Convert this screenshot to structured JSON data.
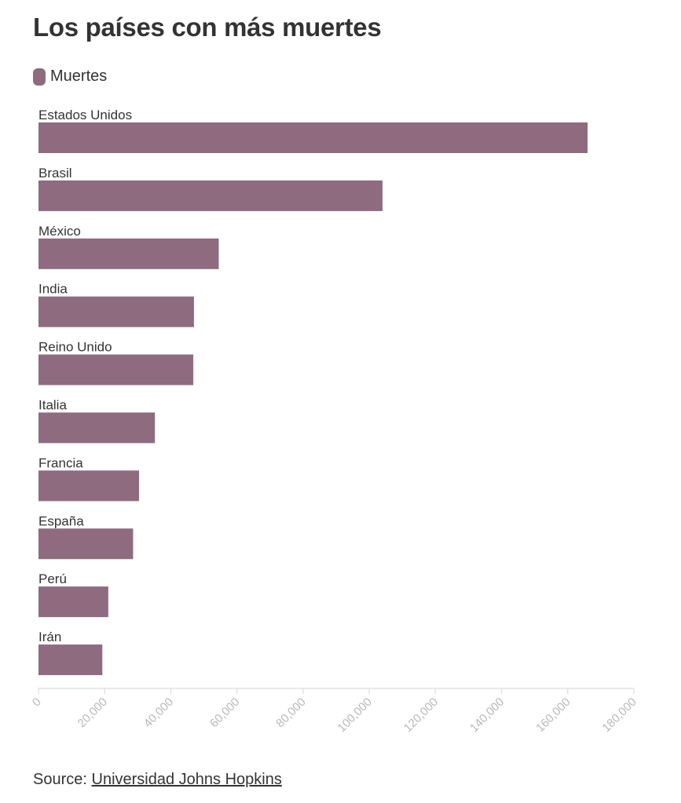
{
  "title": "Los países con más muertes",
  "legend": {
    "label": "Muertes",
    "color": "#8e6b7f"
  },
  "source": {
    "prefix": "Source:",
    "link_text": "Universidad Johns Hopkins"
  },
  "chart_data": {
    "type": "bar",
    "orientation": "horizontal",
    "title": "Los países con más muertes",
    "categories": [
      "Estados Unidos",
      "Brasil",
      "México",
      "India",
      "Reino Unido",
      "Italia",
      "Francia",
      "España",
      "Perú",
      "Irán"
    ],
    "series": [
      {
        "name": "Muertes",
        "color": "#8e6b7f",
        "values": [
          166000,
          104000,
          54500,
          47000,
          46800,
          35200,
          30400,
          28600,
          21100,
          19300
        ]
      }
    ],
    "xlim": [
      0,
      180000
    ],
    "xticks": [
      "0",
      "20,000",
      "40,000",
      "60,000",
      "80,000",
      "100,000",
      "120,000",
      "140,000",
      "160,000",
      "180,000"
    ],
    "xtick_values": [
      0,
      20000,
      40000,
      60000,
      80000,
      100000,
      120000,
      140000,
      160000,
      180000
    ],
    "legend_position": "top-left",
    "grid": false
  }
}
